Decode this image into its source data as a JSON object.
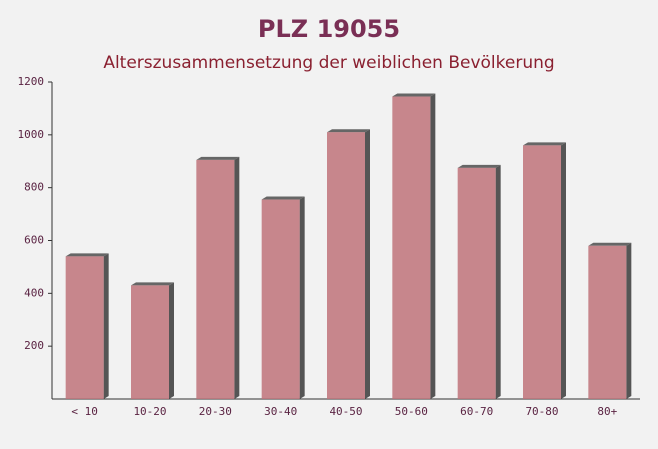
{
  "chart_data": {
    "type": "bar",
    "title": "PLZ 19055",
    "subtitle": "Alterszusammensetzung der weiblichen Bevölkerung",
    "categories": [
      "< 10",
      "10-20",
      "20-30",
      "30-40",
      "40-50",
      "50-60",
      "60-70",
      "70-80",
      "80+"
    ],
    "values": [
      540,
      430,
      905,
      755,
      1010,
      1145,
      875,
      960,
      580
    ],
    "color": "#c0737a",
    "ylim": [
      0,
      1200
    ],
    "yticks": [
      200,
      400,
      600,
      800,
      1000,
      1200
    ]
  }
}
